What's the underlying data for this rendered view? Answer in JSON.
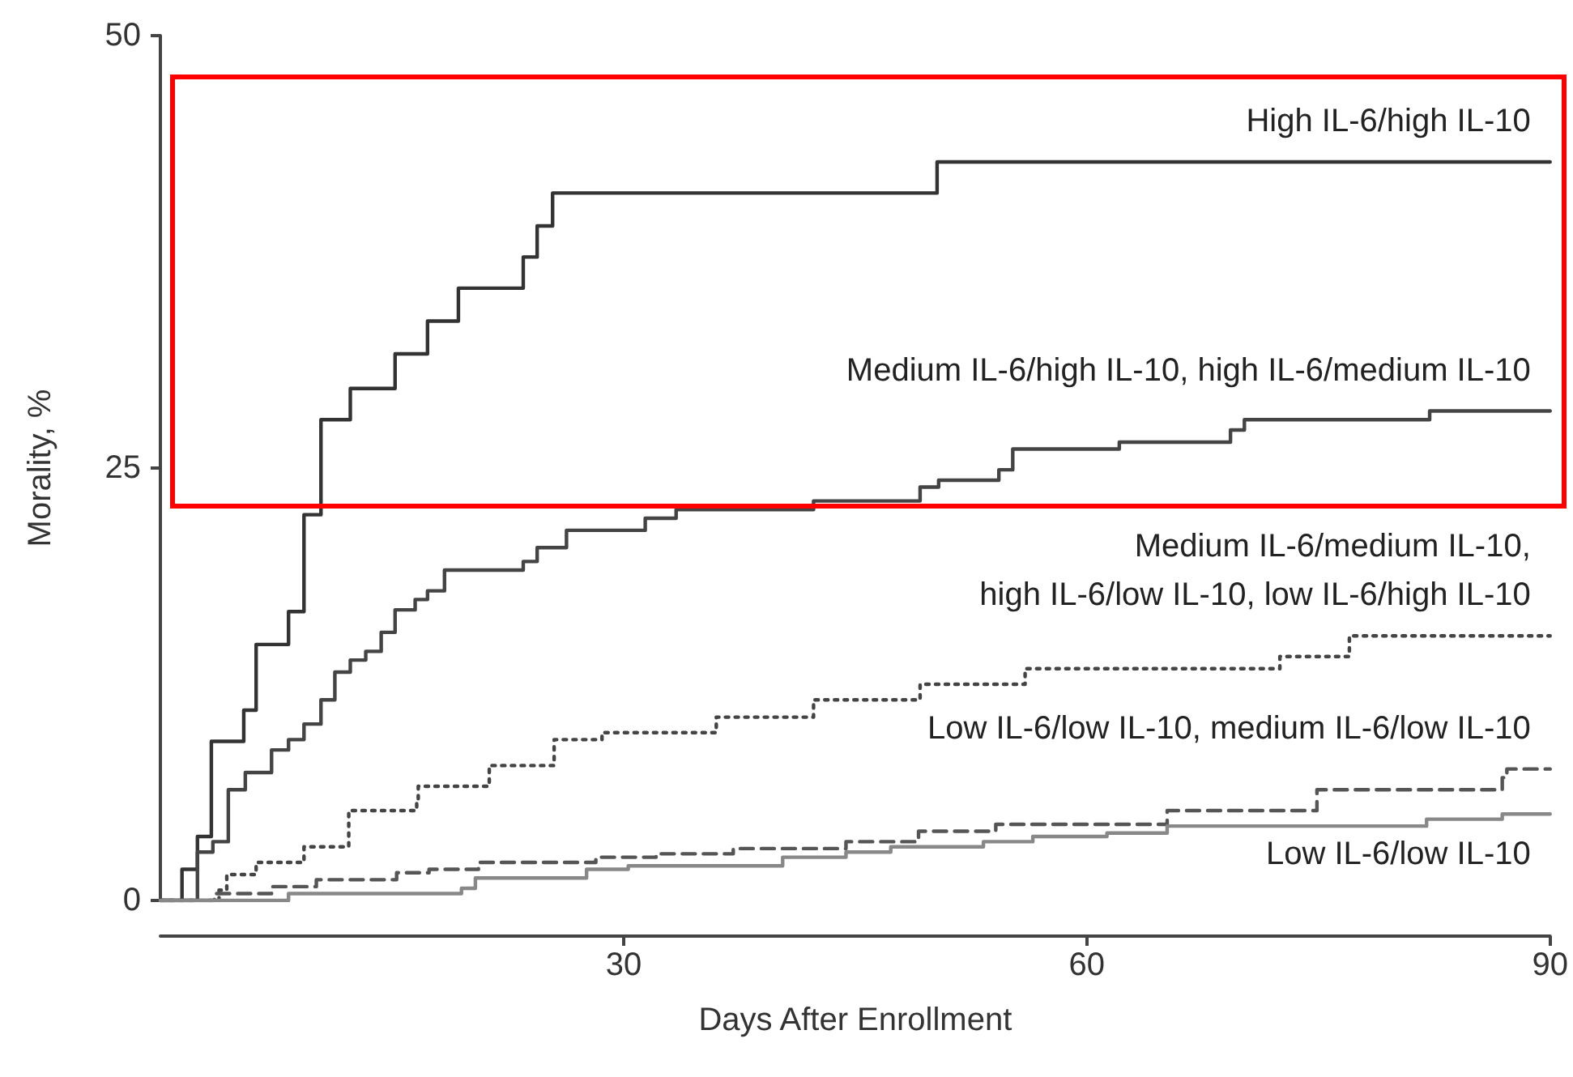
{
  "chart_data": {
    "type": "step",
    "xlabel": "Days After Enrollment",
    "ylabel": "Morality, %",
    "xlim": [
      0,
      90
    ],
    "xticks": [
      30,
      60,
      90
    ],
    "ylim": [
      0,
      50
    ],
    "yticks": [
      0,
      25,
      50
    ],
    "grid": false,
    "marker": "none",
    "series": [
      {
        "name": "High IL-6/high IL-10",
        "color": "#333333",
        "line_style": "solid",
        "x": [
          0,
          1.4,
          2.4,
          3.3,
          5.4,
          6.2,
          8.3,
          9.3,
          10.4,
          12.3,
          15.2,
          17.3,
          19.3,
          23.5,
          24.4,
          25.4,
          50.3,
          90
        ],
        "values": [
          0,
          1.8,
          3.7,
          9.2,
          11.0,
          14.8,
          16.7,
          22.3,
          27.8,
          29.6,
          31.6,
          33.5,
          35.4,
          37.2,
          39.0,
          40.9,
          42.7,
          42.7
        ]
      },
      {
        "name": "Medium IL-6/high IL-10, high IL-6/medium IL-10",
        "color": "#444444",
        "line_style": "solid",
        "x": [
          0,
          2.4,
          3.4,
          4.4,
          5.5,
          7.2,
          8.3,
          9.3,
          10.4,
          11.3,
          12.3,
          13.3,
          14.3,
          15.2,
          16.5,
          17.3,
          18.4,
          23.5,
          24.4,
          26.3,
          31.4,
          33.4,
          42.3,
          49.2,
          50.4,
          54.3,
          55.2,
          62.1,
          69.3,
          70.2,
          82.2,
          90
        ],
        "values": [
          0,
          2.8,
          3.4,
          6.4,
          7.4,
          8.7,
          9.3,
          10.2,
          11.6,
          13.2,
          13.9,
          14.4,
          15.5,
          16.8,
          17.4,
          17.9,
          19.1,
          19.6,
          20.4,
          21.4,
          22.1,
          22.6,
          23.1,
          23.9,
          24.3,
          24.9,
          26.1,
          26.5,
          27.2,
          27.8,
          28.3,
          28.3
        ]
      },
      {
        "name": "Medium IL-6/medium IL-10,\nhigh IL-6/low IL-10, low IL-6/high IL-10",
        "color": "#444444",
        "line_style": "dotted",
        "x": [
          0,
          3.8,
          4.3,
          6.2,
          9.3,
          12.2,
          16.6,
          16.7,
          21.3,
          25.5,
          28.6,
          36,
          42.3,
          49.2,
          56,
          72.5,
          77,
          90
        ],
        "values": [
          0,
          0.6,
          1.5,
          2.2,
          3.1,
          5.2,
          5.7,
          6.6,
          7.8,
          9.3,
          9.7,
          10.6,
          11.6,
          12.5,
          13.4,
          14.1,
          15.3,
          15.3
        ]
      },
      {
        "name": "Low IL-6/low IL-10, medium IL-6/low IL-10",
        "color": "#555555",
        "line_style": "dashed",
        "x": [
          0,
          3.5,
          7.2,
          10.1,
          15.3,
          17.4,
          20.6,
          28.2,
          32.1,
          37.1,
          44.4,
          49.1,
          54.1,
          65.2,
          74.9,
          86.9,
          87.2,
          90
        ],
        "values": [
          0,
          0.4,
          0.8,
          1.2,
          1.6,
          1.8,
          2.2,
          2.5,
          2.7,
          3.0,
          3.4,
          4.0,
          4.4,
          5.2,
          6.4,
          7.1,
          7.6,
          7.6
        ]
      },
      {
        "name": "Low IL-6/low IL-10",
        "color": "#888888",
        "line_style": "solid",
        "x": [
          0,
          8.3,
          19.5,
          20.4,
          27.6,
          30.3,
          40.3,
          44.4,
          47.3,
          53.3,
          56.5,
          61.3,
          65.2,
          82,
          86.9,
          90
        ],
        "values": [
          0,
          0.4,
          0.7,
          1.3,
          1.8,
          2.0,
          2.5,
          2.8,
          3.1,
          3.4,
          3.7,
          3.9,
          4.3,
          4.7,
          5.0,
          5.0
        ]
      }
    ]
  }
}
